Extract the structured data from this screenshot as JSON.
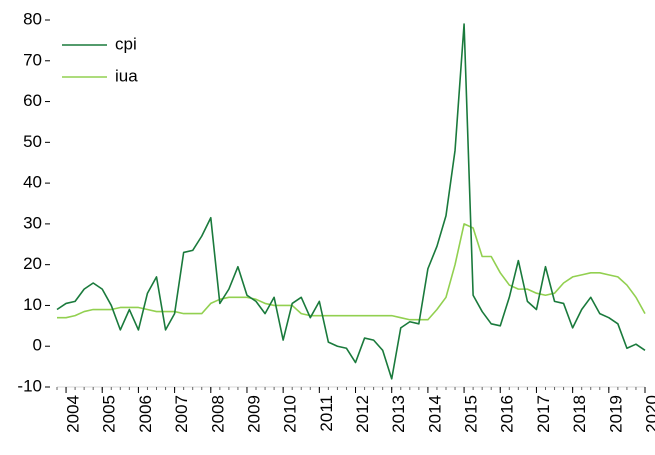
{
  "chart_data": {
    "type": "line",
    "x": [
      2003.75,
      2004,
      2004.25,
      2004.5,
      2004.75,
      2005,
      2005.25,
      2005.5,
      2005.75,
      2006,
      2006.25,
      2006.5,
      2006.75,
      2007,
      2007.25,
      2007.5,
      2007.75,
      2008,
      2008.25,
      2008.5,
      2008.75,
      2009,
      2009.25,
      2009.5,
      2009.75,
      2010,
      2010.25,
      2010.5,
      2010.75,
      2011,
      2011.25,
      2011.5,
      2011.75,
      2012,
      2012.25,
      2012.5,
      2012.75,
      2013,
      2013.25,
      2013.5,
      2013.75,
      2014,
      2014.25,
      2014.5,
      2014.75,
      2015,
      2015.25,
      2015.5,
      2015.75,
      2016,
      2016.25,
      2016.5,
      2016.75,
      2017,
      2017.25,
      2017.5,
      2017.75,
      2018,
      2018.25,
      2018.5,
      2018.75,
      2019,
      2019.25,
      2019.5,
      2019.75,
      2020
    ],
    "series": [
      {
        "name": "cpi",
        "color": "#1a7a3c",
        "values": [
          9,
          10.5,
          11,
          14,
          15.5,
          14,
          10,
          4,
          9,
          4,
          13,
          17,
          4,
          8,
          23,
          23.5,
          27,
          31.5,
          10.5,
          14,
          19.5,
          12.5,
          11,
          8,
          12,
          1.5,
          10.5,
          12,
          7,
          11,
          1,
          0,
          -0.5,
          -4,
          2,
          1.5,
          -1,
          -8,
          4.5,
          6,
          5.5,
          19,
          24.5,
          32,
          48,
          79,
          12.5,
          8.5,
          5.5,
          5,
          12,
          21,
          11,
          9,
          19.5,
          11,
          10.5,
          4.5,
          9,
          12,
          8,
          7,
          5.5,
          -0.5,
          0.5,
          -1
        ]
      },
      {
        "name": "iua",
        "color": "#92d050",
        "values": [
          7,
          7,
          7.5,
          8.5,
          9,
          9,
          9,
          9.5,
          9.5,
          9.5,
          9,
          8.5,
          8.5,
          8.5,
          8,
          8,
          8,
          10.5,
          11.5,
          12,
          12,
          12,
          11.5,
          10.5,
          10,
          10,
          10,
          8,
          7.5,
          7.5,
          7.5,
          7.5,
          7.5,
          7.5,
          7.5,
          7.5,
          7.5,
          7.5,
          7,
          6.5,
          6.5,
          6.5,
          9,
          12,
          20,
          30,
          29,
          22,
          22,
          18,
          15,
          14,
          14,
          13,
          12.5,
          13,
          15.5,
          17,
          17.5,
          18,
          18,
          17.5,
          17,
          15,
          12,
          8
        ]
      }
    ],
    "xlim": [
      2003.75,
      2020
    ],
    "xticks": [
      2004,
      2005,
      2006,
      2007,
      2008,
      2009,
      2010,
      2011,
      2012,
      2013,
      2014,
      2015,
      2016,
      2017,
      2018,
      2019,
      2020
    ],
    "ylim": [
      -10,
      80
    ],
    "yticks": [
      -10,
      0,
      10,
      20,
      30,
      40,
      50,
      60,
      70,
      80
    ]
  }
}
